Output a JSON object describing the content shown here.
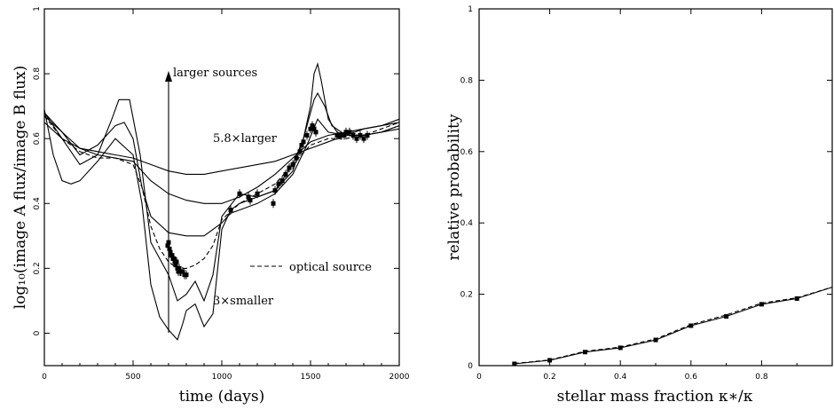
{
  "chart_data": [
    {
      "type": "line",
      "xlabel": "time (days)",
      "ylabel": "log₁₀(image A flux/image B flux)",
      "xlim": [
        0,
        2000
      ],
      "ylim": [
        -0.1,
        1.0
      ],
      "xticks": [
        "0",
        "500",
        "1000",
        "1500",
        "2000"
      ],
      "yticks": [
        "0",
        "0.2",
        "0.4",
        "0.6",
        "0.8",
        "1"
      ],
      "annotations": {
        "larger_sources": "larger sources",
        "larger": "5.8×larger",
        "optical": "optical source",
        "smaller": "3×smaller"
      },
      "series": [
        {
          "style": "solid",
          "x": [
            0,
            100,
            200,
            300,
            400,
            500,
            600,
            700,
            800,
            900,
            1000,
            1100,
            1200,
            1300,
            1400,
            1500,
            1600,
            1700,
            1800,
            1900,
            2000
          ],
          "y": [
            0.65,
            0.6,
            0.57,
            0.56,
            0.55,
            0.54,
            0.52,
            0.5,
            0.49,
            0.49,
            0.5,
            0.51,
            0.52,
            0.53,
            0.55,
            0.57,
            0.59,
            0.61,
            0.63,
            0.64,
            0.65
          ]
        },
        {
          "style": "solid",
          "x": [
            0,
            100,
            200,
            300,
            400,
            500,
            600,
            700,
            800,
            900,
            1000,
            1100,
            1200,
            1300,
            1400,
            1500,
            1600,
            1700,
            1800,
            1900,
            2000
          ],
          "y": [
            0.67,
            0.62,
            0.57,
            0.55,
            0.54,
            0.53,
            0.47,
            0.43,
            0.41,
            0.4,
            0.4,
            0.42,
            0.45,
            0.49,
            0.54,
            0.59,
            0.61,
            0.62,
            0.63,
            0.64,
            0.66
          ]
        },
        {
          "style": "solid",
          "x": [
            0,
            100,
            200,
            300,
            400,
            450,
            500,
            550,
            600,
            700,
            800,
            900,
            1000,
            1050,
            1100,
            1200,
            1300,
            1400,
            1480,
            1540,
            1600,
            1700,
            1800,
            1900,
            2000
          ],
          "y": [
            0.68,
            0.62,
            0.55,
            0.58,
            0.64,
            0.65,
            0.6,
            0.45,
            0.36,
            0.31,
            0.3,
            0.3,
            0.34,
            0.37,
            0.38,
            0.4,
            0.43,
            0.49,
            0.58,
            0.66,
            0.62,
            0.61,
            0.61,
            0.62,
            0.64
          ]
        },
        {
          "style": "solid",
          "x": [
            0,
            100,
            200,
            300,
            380,
            420,
            480,
            540,
            600,
            700,
            750,
            800,
            850,
            900,
            950,
            1000,
            1100,
            1200,
            1300,
            1400,
            1460,
            1500,
            1520,
            1540,
            1580,
            1620,
            1700,
            1800,
            1900,
            2000
          ],
          "y": [
            0.68,
            0.6,
            0.52,
            0.55,
            0.66,
            0.72,
            0.72,
            0.55,
            0.28,
            0.18,
            0.1,
            0.12,
            0.16,
            0.1,
            0.18,
            0.36,
            0.43,
            0.42,
            0.44,
            0.52,
            0.6,
            0.68,
            0.72,
            0.74,
            0.7,
            0.64,
            0.61,
            0.61,
            0.62,
            0.64
          ]
        },
        {
          "style": "solid",
          "x": [
            0,
            50,
            100,
            150,
            200,
            300,
            400,
            500,
            550,
            600,
            650,
            700,
            750,
            780,
            800,
            850,
            900,
            950,
            1000,
            1050,
            1100,
            1200,
            1300,
            1400,
            1460,
            1500,
            1520,
            1540,
            1560,
            1600,
            1650,
            1700,
            1800,
            1900,
            2000
          ],
          "y": [
            0.69,
            0.55,
            0.47,
            0.46,
            0.47,
            0.53,
            0.6,
            0.55,
            0.4,
            0.15,
            0.05,
            0.01,
            -0.02,
            0.03,
            0.07,
            0.09,
            0.02,
            0.06,
            0.32,
            0.38,
            0.4,
            0.42,
            0.44,
            0.5,
            0.6,
            0.7,
            0.8,
            0.83,
            0.78,
            0.66,
            0.62,
            0.61,
            0.61,
            0.62,
            0.63
          ]
        },
        {
          "style": "dashed",
          "x": [
            0,
            100,
            200,
            300,
            400,
            500,
            550,
            600,
            650,
            700,
            750,
            800,
            850,
            900,
            950,
            1000,
            1100,
            1200,
            1300,
            1400,
            1500,
            1600,
            1700,
            1800,
            1900,
            2000
          ],
          "y": [
            0.67,
            0.6,
            0.56,
            0.54,
            0.54,
            0.52,
            0.45,
            0.33,
            0.26,
            0.22,
            0.2,
            0.2,
            0.21,
            0.23,
            0.27,
            0.35,
            0.4,
            0.43,
            0.46,
            0.52,
            0.58,
            0.6,
            0.6,
            0.61,
            0.63,
            0.65
          ]
        }
      ],
      "observations": {
        "x": [
          695,
          700,
          705,
          710,
          715,
          720,
          725,
          730,
          735,
          740,
          745,
          750,
          755,
          760,
          765,
          770,
          780,
          790,
          800,
          1050,
          1100,
          1150,
          1160,
          1200,
          1290,
          1300,
          1320,
          1340,
          1360,
          1380,
          1400,
          1420,
          1440,
          1450,
          1460,
          1480,
          1500,
          1510,
          1520,
          1530,
          1650,
          1670,
          1690,
          1700,
          1720,
          1740,
          1760,
          1780,
          1800,
          1820
        ],
        "y": [
          0.27,
          0.28,
          0.26,
          0.25,
          0.24,
          0.24,
          0.23,
          0.23,
          0.22,
          0.21,
          0.22,
          0.2,
          0.19,
          0.2,
          0.19,
          0.19,
          0.19,
          0.18,
          0.18,
          0.38,
          0.43,
          0.42,
          0.41,
          0.43,
          0.4,
          0.44,
          0.46,
          0.47,
          0.49,
          0.51,
          0.52,
          0.54,
          0.56,
          0.58,
          0.59,
          0.61,
          0.63,
          0.64,
          0.63,
          0.62,
          0.61,
          0.61,
          0.61,
          0.62,
          0.62,
          0.61,
          0.6,
          0.61,
          0.6,
          0.61
        ]
      }
    },
    {
      "type": "line",
      "xlabel": "stellar mass fraction κ∗/κ",
      "ylabel": "relative probability",
      "xlim": [
        0,
        1.0
      ],
      "ylim": [
        0,
        1.0
      ],
      "xticks": [
        "0",
        "0.2",
        "0.4",
        "0.6",
        "0.8"
      ],
      "yticks": [
        "0",
        "0.2",
        "0.4",
        "0.6",
        "0.8",
        "1"
      ],
      "series": [
        {
          "style": "solid",
          "x": [
            0.1,
            0.2,
            0.3,
            0.4,
            0.5,
            0.6,
            0.7,
            0.8,
            0.9,
            1.0
          ],
          "y": [
            0.005,
            0.015,
            0.038,
            0.05,
            0.072,
            0.112,
            0.138,
            0.172,
            0.188,
            0.22
          ]
        },
        {
          "style": "dashed",
          "x": [
            0.1,
            0.2,
            0.3,
            0.4,
            0.5,
            0.6,
            0.7,
            0.8,
            0.9,
            1.0
          ],
          "y": [
            0.006,
            0.016,
            0.04,
            0.052,
            0.075,
            0.115,
            0.142,
            0.175,
            0.19,
            0.22
          ]
        }
      ],
      "points": {
        "x": [
          0.1,
          0.2,
          0.3,
          0.4,
          0.5,
          0.6,
          0.7,
          0.8,
          0.9
        ],
        "y": [
          0.005,
          0.015,
          0.038,
          0.05,
          0.072,
          0.112,
          0.138,
          0.172,
          0.188
        ]
      }
    }
  ]
}
